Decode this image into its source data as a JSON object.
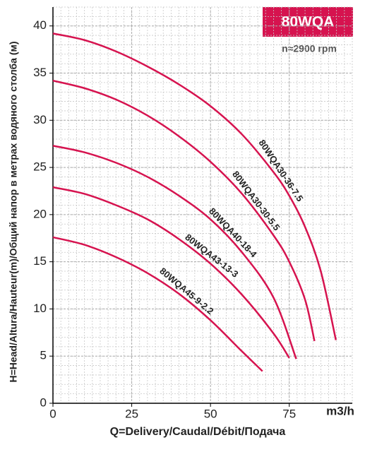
{
  "chart_data": {
    "type": "line",
    "badge": "80WQA",
    "subtitle": "n≈2900 rpm",
    "x_label": "Q=Delivery/Caudal/Débit/Подача",
    "x_unit": "m3/h",
    "y_label": "H=Head/Altura/Hauteur(m)/Общий напор в метрах водяного столба (м)",
    "xlim": [
      0,
      95
    ],
    "xticks": [
      0,
      25,
      50,
      75
    ],
    "ylim": [
      0,
      42
    ],
    "yticks": [
      0,
      5,
      10,
      15,
      20,
      25,
      30,
      35,
      40
    ],
    "grid": true,
    "x_minor_step": 2.5,
    "y_minor_step": 1,
    "series": [
      {
        "name": "80WQA30-36-7.5",
        "color": "#d6134f",
        "x": [
          0,
          10,
          20,
          30,
          40,
          50,
          60,
          70,
          75,
          80,
          85,
          89.8
        ],
        "values": [
          39.2,
          38.5,
          37.3,
          35.7,
          33.8,
          31.5,
          28.5,
          24.5,
          22,
          18.7,
          14,
          6.7
        ]
      },
      {
        "name": "80WQA30-30-5.5",
        "color": "#d6134f",
        "x": [
          0,
          10,
          20,
          30,
          40,
          50,
          60,
          70,
          75,
          80,
          83
        ],
        "values": [
          34.2,
          33.4,
          32.2,
          30.5,
          28.3,
          25.6,
          22.2,
          17.8,
          15,
          11,
          6.6
        ]
      },
      {
        "name": "80WQA40-18-4",
        "color": "#d6134f",
        "x": [
          0,
          10,
          20,
          30,
          40,
          50,
          60,
          70,
          77.2
        ],
        "values": [
          27.3,
          26.6,
          25.5,
          24,
          22,
          19.5,
          16,
          11.2,
          4.7
        ]
      },
      {
        "name": "80WQA43-13-3",
        "color": "#d6134f",
        "x": [
          0,
          10,
          20,
          30,
          40,
          50,
          60,
          70,
          75
        ],
        "values": [
          22.9,
          22.2,
          21,
          19.5,
          17.4,
          14.8,
          11.5,
          7.4,
          4.8
        ]
      },
      {
        "name": "80WQA45-9-2.2",
        "color": "#d6134f",
        "x": [
          0,
          10,
          20,
          30,
          40,
          50,
          60,
          66.5
        ],
        "values": [
          17.6,
          16.8,
          15.5,
          13.8,
          11.6,
          8.8,
          5.5,
          3.4
        ]
      }
    ]
  }
}
